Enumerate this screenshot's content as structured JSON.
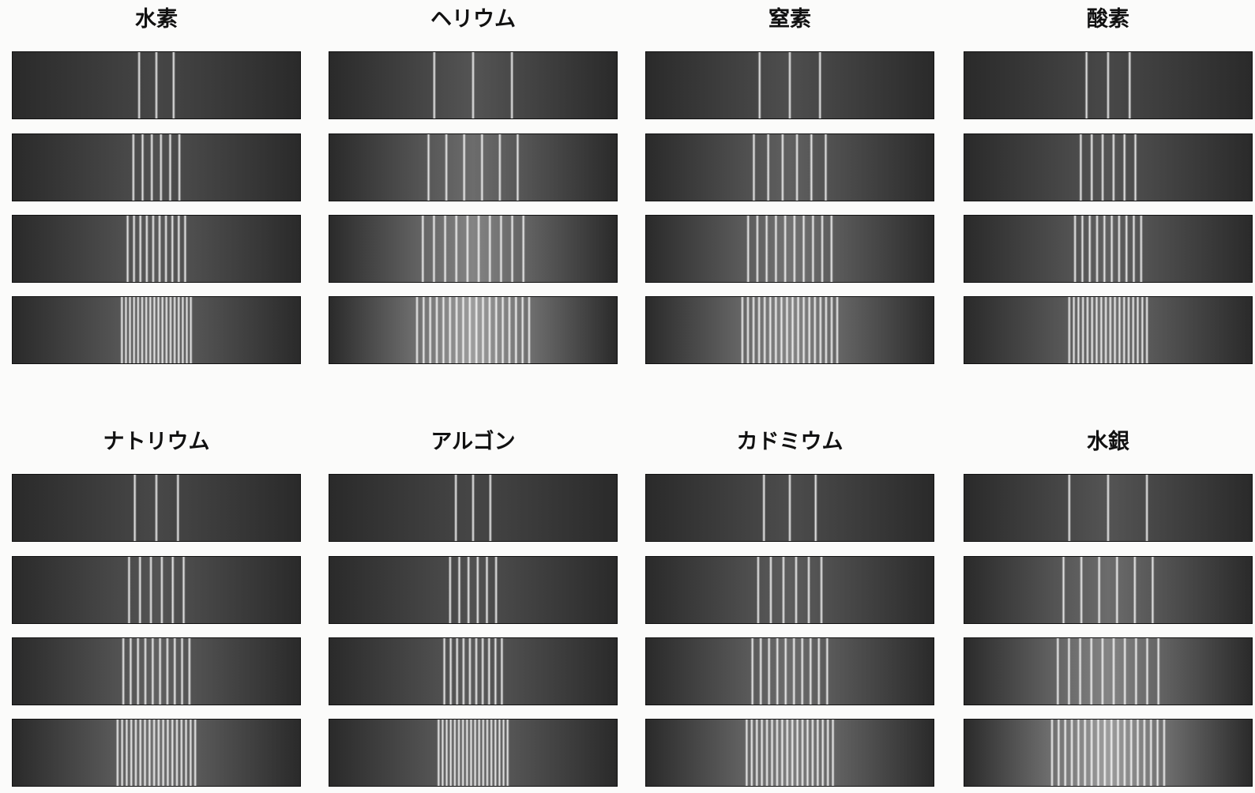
{
  "panels": [
    {
      "title": "水素"
    },
    {
      "title": "ヘリウム"
    },
    {
      "title": "窒素"
    },
    {
      "title": "酸素"
    },
    {
      "title": "ナトリウム"
    },
    {
      "title": "アルゴン"
    },
    {
      "title": "カドミウム"
    },
    {
      "title": "水銀"
    }
  ]
}
